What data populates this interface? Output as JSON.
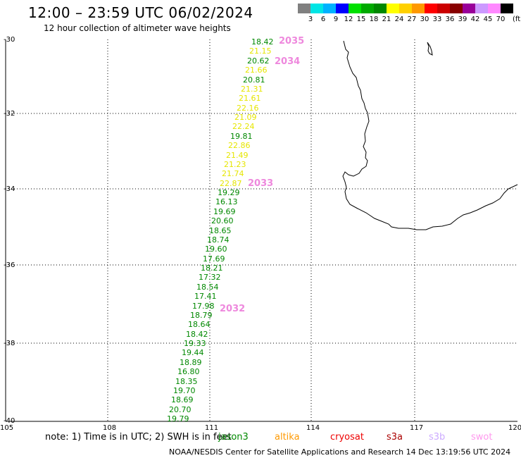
{
  "title": "12:00 – 23:59 UTC 06/02/2024",
  "subtitle": "12 hour collection of altimeter wave heights",
  "colorscale": {
    "colors": [
      "#808080",
      "#00e5e5",
      "#00b2ff",
      "#0000ff",
      "#00e000",
      "#00aa00",
      "#008800",
      "#ffff00",
      "#ffd000",
      "#ff9900",
      "#ff0000",
      "#cc0000",
      "#880000",
      "#990099",
      "#cc99ff",
      "#ff88ff",
      "#000000"
    ],
    "labels": [
      "3",
      "6",
      "9",
      "12",
      "15",
      "18",
      "21",
      "24",
      "27",
      "30",
      "33",
      "36",
      "39",
      "42",
      "45",
      "70"
    ],
    "unit": "(ft)"
  },
  "lat_labels": [
    "-30",
    "-32",
    "-34",
    "-36",
    "-38",
    "-40"
  ],
  "lon_labels": [
    "105",
    "108",
    "111",
    "114",
    "117",
    "120"
  ],
  "pass_labels": [
    "2035",
    "2034",
    "2033",
    "2032"
  ],
  "wave_readings": [
    {
      "v": "18.42",
      "c": "#008800"
    },
    {
      "v": "21.15",
      "c": "#e6e600"
    },
    {
      "v": "20.62",
      "c": "#008800"
    },
    {
      "v": "21.66",
      "c": "#e6e600"
    },
    {
      "v": "20.81",
      "c": "#008800"
    },
    {
      "v": "21.31",
      "c": "#e6e600"
    },
    {
      "v": "21.61",
      "c": "#e6e600"
    },
    {
      "v": "22.16",
      "c": "#e6e600"
    },
    {
      "v": "21.09",
      "c": "#e6e600"
    },
    {
      "v": "22.24",
      "c": "#e6e600"
    },
    {
      "v": "19.81",
      "c": "#008800"
    },
    {
      "v": "22.86",
      "c": "#e6e600"
    },
    {
      "v": "21.49",
      "c": "#e6e600"
    },
    {
      "v": "21.23",
      "c": "#e6e600"
    },
    {
      "v": "21.74",
      "c": "#e6e600"
    },
    {
      "v": "22.87",
      "c": "#e6e600"
    },
    {
      "v": "19.29",
      "c": "#008800"
    },
    {
      "v": "16.13",
      "c": "#008800"
    },
    {
      "v": "19.69",
      "c": "#008800"
    },
    {
      "v": "20.60",
      "c": "#008800"
    },
    {
      "v": "18.65",
      "c": "#008800"
    },
    {
      "v": "18.74",
      "c": "#008800"
    },
    {
      "v": "19.60",
      "c": "#008800"
    },
    {
      "v": "17.69",
      "c": "#008800"
    },
    {
      "v": "18.21",
      "c": "#008800"
    },
    {
      "v": "17.32",
      "c": "#008800"
    },
    {
      "v": "18.54",
      "c": "#008800"
    },
    {
      "v": "17.41",
      "c": "#008800"
    },
    {
      "v": "17.98",
      "c": "#008800"
    },
    {
      "v": "18.79",
      "c": "#008800"
    },
    {
      "v": "18.64",
      "c": "#008800"
    },
    {
      "v": "18.42",
      "c": "#008800"
    },
    {
      "v": "19.33",
      "c": "#008800"
    },
    {
      "v": "19.44",
      "c": "#008800"
    },
    {
      "v": "18.89",
      "c": "#008800"
    },
    {
      "v": "16.80",
      "c": "#008800"
    },
    {
      "v": "18.35",
      "c": "#008800"
    },
    {
      "v": "19.70",
      "c": "#008800"
    },
    {
      "v": "18.69",
      "c": "#008800"
    },
    {
      "v": "20.70",
      "c": "#008800"
    },
    {
      "v": "19.79",
      "c": "#008800"
    }
  ],
  "note": "note: 1) Time is in UTC; 2) SWH is in feet",
  "satellites": [
    {
      "name": "jason3",
      "color": "#008800"
    },
    {
      "name": "altika",
      "color": "#ff9900"
    },
    {
      "name": "cryosat",
      "color": "#ee0000"
    },
    {
      "name": "s3a",
      "color": "#aa0000"
    },
    {
      "name": "s3b",
      "color": "#ccaaff"
    },
    {
      "name": "swot",
      "color": "#ff99ee"
    }
  ],
  "footer": "NOAA/NESDIS Center for Satellite Applications and Research    14 Dec 13:19:56 UTC 2024"
}
